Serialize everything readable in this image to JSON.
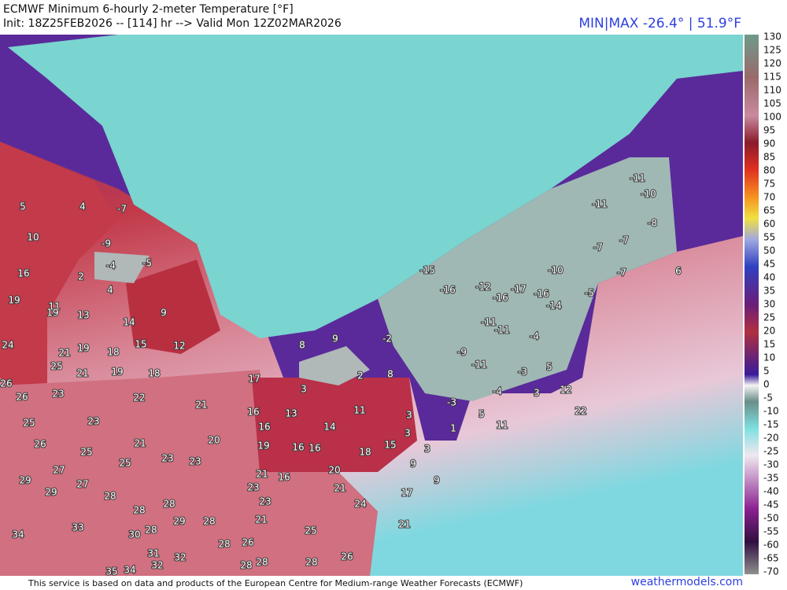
{
  "header": {
    "title": "ECMWF Minimum 6-hourly 2-meter Temperature [°F]",
    "init": "Init: 18Z25FEB2026 -- [114] hr --> Valid Mon 12Z02MAR2026",
    "minmax": "MIN|MAX -26.4° | 51.9°F"
  },
  "colorbar": {
    "ticks": [
      130,
      125,
      120,
      115,
      110,
      105,
      100,
      95,
      90,
      85,
      80,
      75,
      70,
      65,
      60,
      55,
      50,
      45,
      40,
      35,
      30,
      25,
      20,
      15,
      10,
      5,
      0,
      -5,
      -10,
      -15,
      -20,
      -25,
      -30,
      -35,
      -40,
      -45,
      -50,
      -55,
      -60,
      -65,
      -70
    ]
  },
  "map_labels": [
    5,
    4,
    -7,
    10,
    -9,
    -4,
    -5,
    16,
    2,
    4,
    19,
    11,
    19,
    13,
    14,
    9,
    15,
    12,
    24,
    21,
    19,
    18,
    25,
    21,
    19,
    18,
    26,
    26,
    23,
    22,
    21,
    17,
    8,
    9,
    -2,
    3,
    2,
    8,
    16,
    13,
    11,
    16,
    14,
    3,
    3,
    25,
    23,
    26,
    25,
    21,
    20,
    19,
    16,
    16,
    18,
    15,
    3,
    25,
    23,
    23,
    27,
    21,
    20,
    9,
    16,
    29,
    29,
    27,
    28,
    23,
    21,
    9,
    17,
    28,
    28,
    23,
    24,
    33,
    29,
    28,
    21,
    25,
    21,
    34,
    30,
    28,
    28,
    26,
    31,
    32,
    32,
    35,
    34,
    28,
    28,
    28,
    26,
    -15,
    -16,
    -12,
    -16,
    -17,
    -16,
    -10,
    -14,
    -5,
    -11,
    -11,
    -4,
    -9,
    -11,
    -3,
    5,
    -4,
    3,
    12,
    -3,
    5,
    1,
    11,
    22,
    -11,
    -10,
    -11,
    -8,
    -7,
    -7,
    -7,
    6
  ],
  "footer": {
    "notice": "This service is based on data and products of the European Centre for Medium-range Weather Forecasts (ECMWF)",
    "site": "weathermodels.com"
  }
}
